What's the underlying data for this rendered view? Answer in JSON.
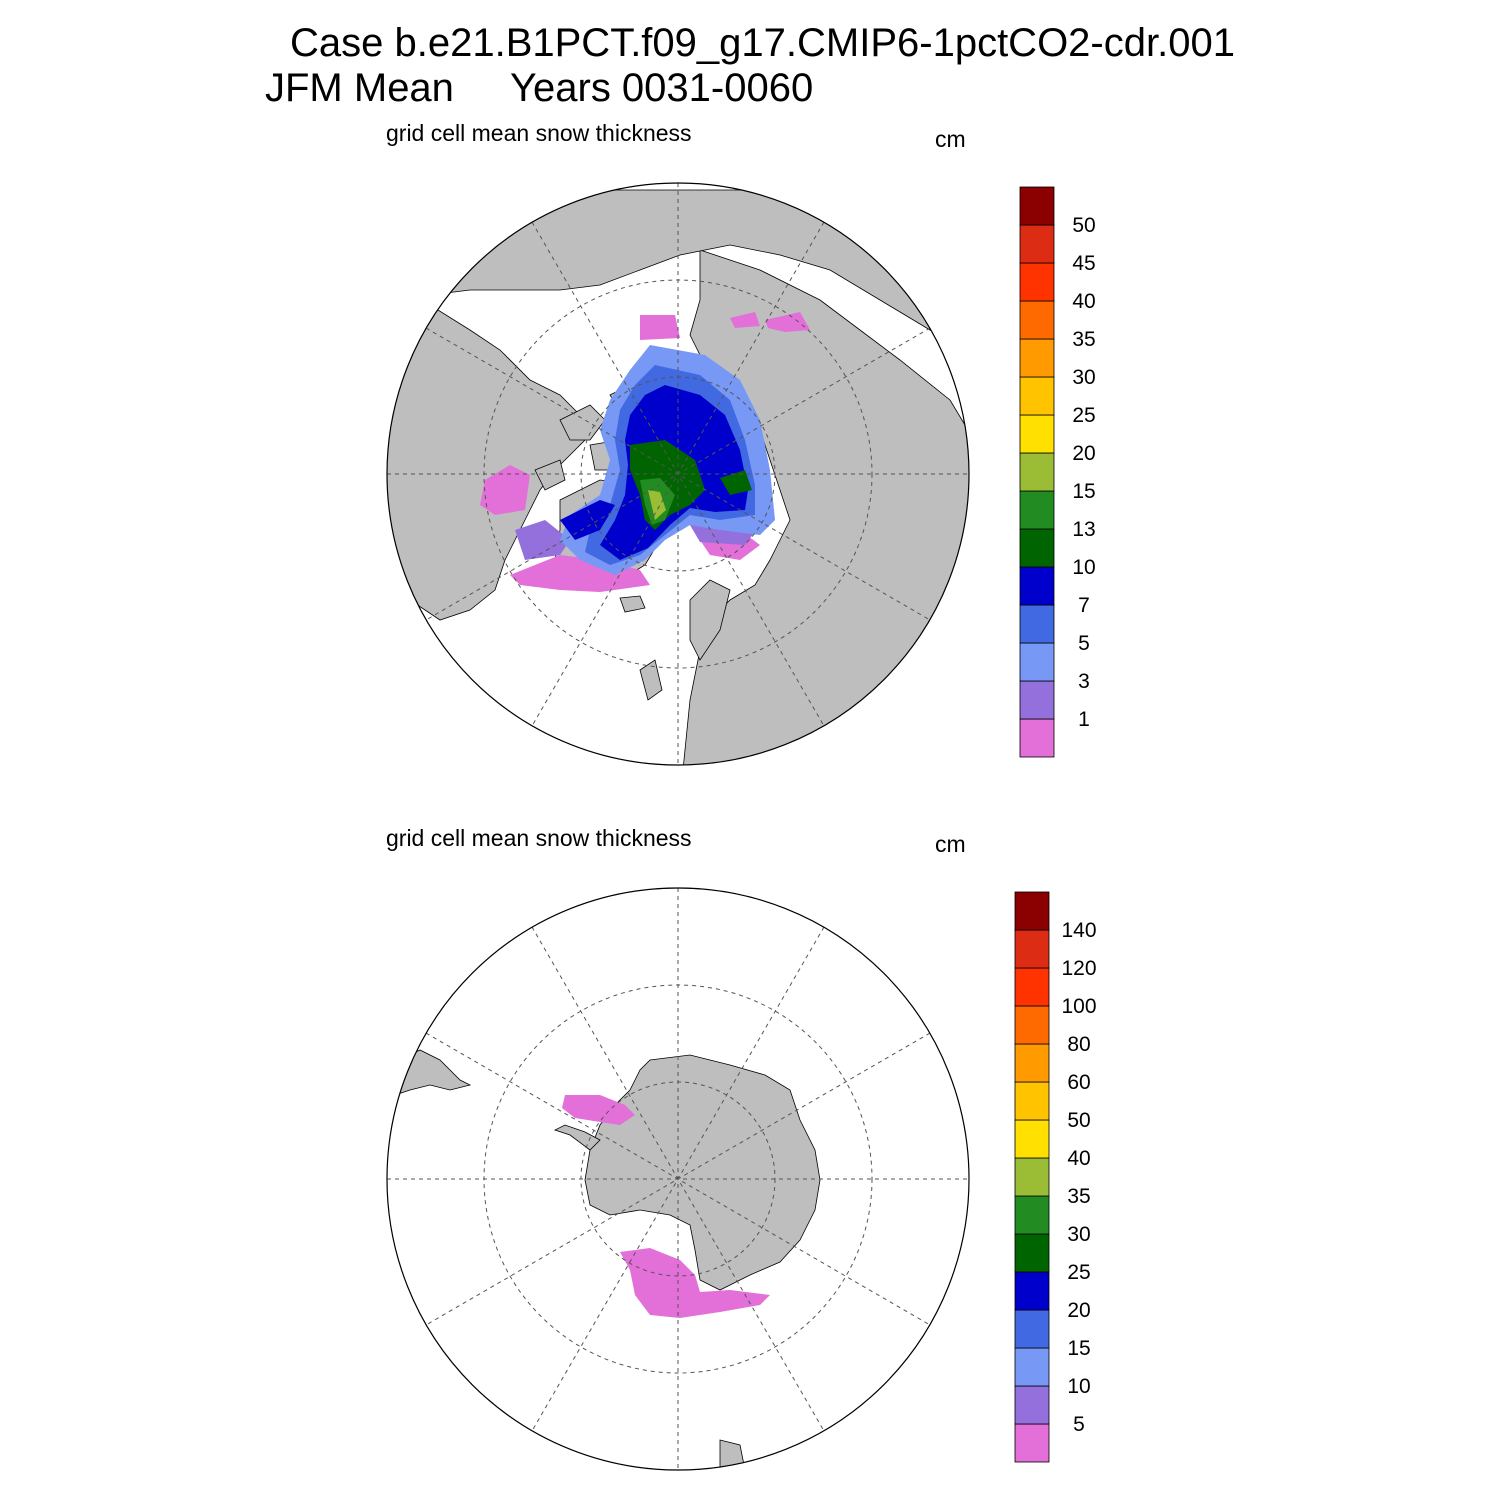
{
  "header": {
    "case_line": "Case b.e21.B1PCT.f09_g17.CMIP6-1pctCO2-cdr.001",
    "season": "JFM Mean",
    "years": "Years 0031-0060"
  },
  "colors": {
    "land": "#bebebe",
    "ocean": "#ffffff",
    "scale": [
      "#e36fd9",
      "#9370db",
      "#7799f5",
      "#4169e1",
      "#0000cd",
      "#006400",
      "#228b22",
      "#9abd35",
      "#ffe000",
      "#ffc300",
      "#ff9a00",
      "#ff6a00",
      "#ff3300",
      "#dc2c14",
      "#8b0000"
    ]
  },
  "panels": [
    {
      "id": "arctic",
      "projection": "north polar stereographic",
      "variable_label": "grid cell mean snow thickness",
      "units": "cm",
      "colorbar_levels": [
        "1",
        "3",
        "5",
        "7",
        "10",
        "13",
        "15",
        "20",
        "25",
        "30",
        "35",
        "40",
        "45",
        "50"
      ]
    },
    {
      "id": "antarctic",
      "projection": "south polar stereographic",
      "variable_label": "grid cell mean snow thickness",
      "units": "cm",
      "colorbar_levels": [
        "5",
        "10",
        "15",
        "20",
        "25",
        "30",
        "35",
        "40",
        "50",
        "60",
        "80",
        "100",
        "120",
        "140"
      ]
    }
  ]
}
